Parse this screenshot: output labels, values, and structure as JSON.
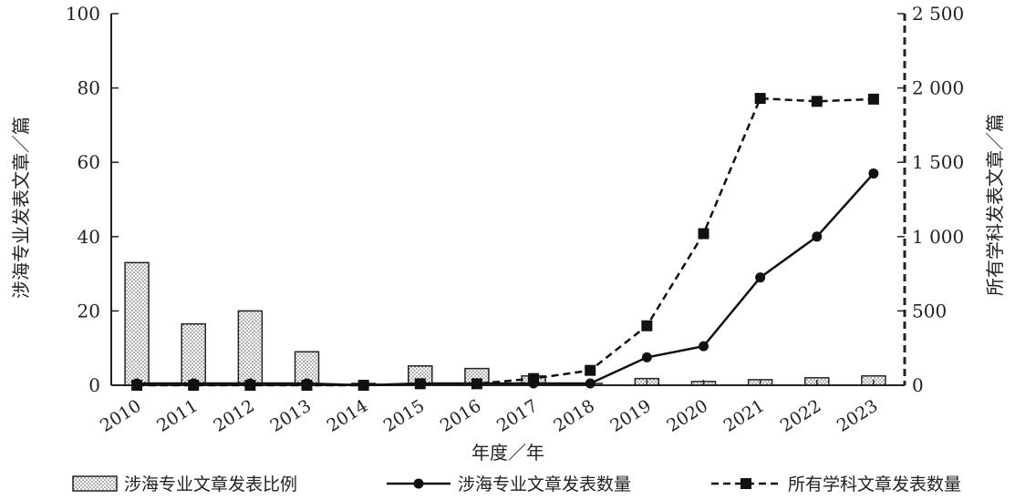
{
  "chart_data": {
    "type": "bar",
    "categories": [
      "2010",
      "2011",
      "2012",
      "2013",
      "2014",
      "2015",
      "2016",
      "2017",
      "2018",
      "2019",
      "2020",
      "2021",
      "2022",
      "2023"
    ],
    "series": [
      {
        "name": "涉海专业文章发表比例",
        "kind": "bar",
        "axis": "left",
        "values": [
          33,
          16.5,
          20,
          9,
          0.5,
          5.2,
          4.5,
          2.5,
          0.5,
          1.8,
          1,
          1.5,
          2,
          2.5
        ]
      },
      {
        "name": "涉海专业文章发表数量",
        "kind": "line",
        "axis": "left",
        "values": [
          0.5,
          0.5,
          0.5,
          0.5,
          0,
          0.5,
          0.5,
          0.5,
          0.5,
          7.5,
          10.5,
          29,
          40,
          57
        ]
      },
      {
        "name": "所有学科文章发表数量",
        "kind": "dashed-line",
        "axis": "right",
        "values": [
          0,
          0,
          0,
          0,
          0,
          10,
          10,
          45,
          100,
          400,
          1020,
          1930,
          1910,
          1925
        ]
      }
    ],
    "xlabel": "年度／年",
    "ylabel": "涉海专业发表文章／篇",
    "ylabel_right": "所有学科发表文章／篇",
    "ylim": [
      0,
      100
    ],
    "ylim_right": [
      0,
      2500
    ],
    "yticks": [
      "0",
      "20",
      "40",
      "60",
      "80",
      "100"
    ],
    "yticks_right": [
      "0",
      "500",
      "1 000",
      "1 500",
      "2 000",
      "2 500"
    ],
    "legend_position": "bottom",
    "grid": false
  }
}
